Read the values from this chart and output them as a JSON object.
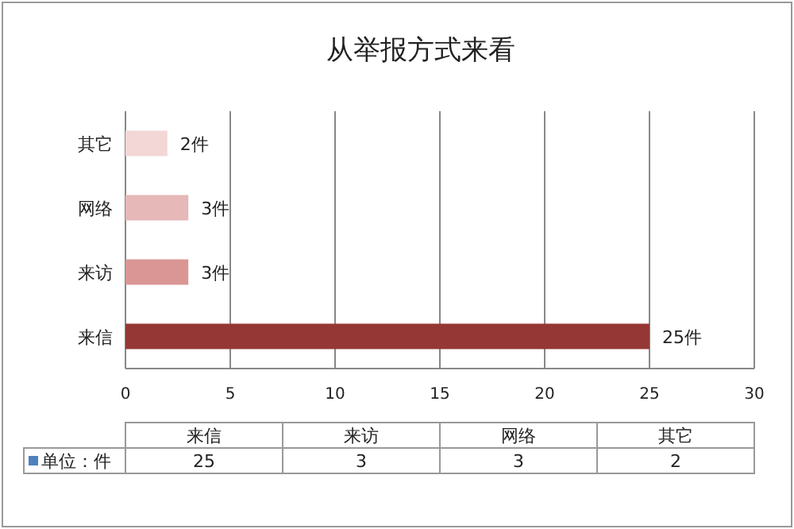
{
  "chart_data": {
    "type": "bar",
    "orientation": "horizontal",
    "title": "从举报方式来看",
    "categories": [
      "其它",
      "网络",
      "来访",
      "来信"
    ],
    "series": [
      {
        "name": "单位：件",
        "color": "#4f81bd",
        "colors": [
          "#f2d7d6",
          "#e6b8b7",
          "#da9694",
          "#953735"
        ],
        "values": [
          2,
          3,
          3,
          25
        ],
        "value_labels": [
          "2件",
          "3件",
          "3件",
          "25件"
        ]
      }
    ],
    "annotations": [
      "25",
      "3",
      "3",
      "2"
    ],
    "xlim": [
      0,
      30
    ],
    "xticks": [
      0,
      5,
      10,
      15,
      20,
      25,
      30
    ],
    "grid": "x",
    "data_labels": true,
    "legend": "bottom"
  }
}
